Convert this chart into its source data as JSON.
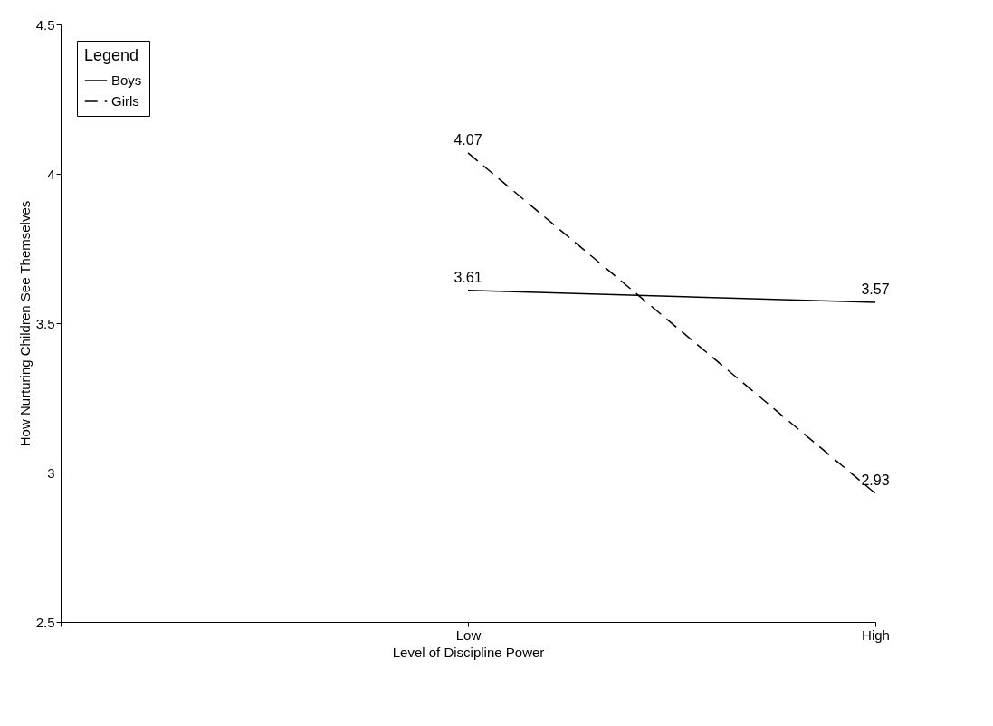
{
  "chart_data": {
    "type": "line",
    "xlabel": "Level of Discipline Power",
    "ylabel": "How Nurturing Children See Themselves",
    "legend_title": "Legend",
    "categories": [
      null,
      "Low",
      "High"
    ],
    "series": [
      {
        "name": "Boys",
        "color": "#000000",
        "line_style": "solid",
        "values": [
          null,
          3.61,
          3.57
        ]
      },
      {
        "name": "Girls",
        "color": "#000000",
        "line_style": "dashed",
        "values": [
          null,
          4.07,
          2.93
        ]
      }
    ],
    "ylim": [
      2.5,
      4.5
    ],
    "yticks": [
      2.5,
      3,
      3.5,
      4,
      4.5
    ],
    "grid": false,
    "legend": "top left",
    "marker": "none",
    "data_labels": true
  }
}
